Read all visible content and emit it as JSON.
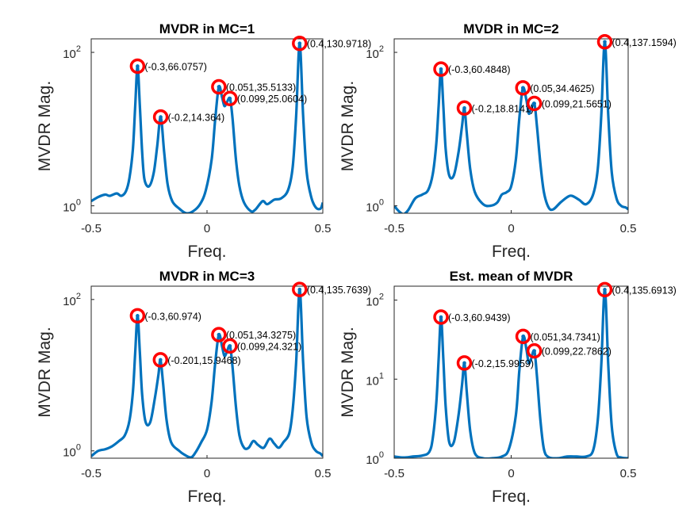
{
  "figure": {
    "background": "#ffffff"
  },
  "colors": {
    "curve": "#0072BD",
    "marker": "#FF0000"
  },
  "chart_data": [
    {
      "type": "line",
      "title": "MVDR in MC=1",
      "xlabel": "Freq.",
      "ylabel": "MVDR Mag.",
      "xlim": [
        -0.5,
        0.5
      ],
      "ylim": [
        0.8,
        150
      ],
      "yscale": "log",
      "xticks": [
        -0.5,
        0,
        0.5
      ],
      "xtick_labels": [
        "-0.5",
        "0",
        "0.5"
      ],
      "yticks": [
        1,
        100
      ],
      "ytick_labels": [
        [
          "10",
          "0"
        ],
        [
          "10",
          "2"
        ]
      ],
      "baseline": [
        [
          -0.5,
          1.15
        ],
        [
          -0.47,
          1.3
        ],
        [
          -0.44,
          1.4
        ],
        [
          -0.42,
          1.35
        ],
        [
          -0.39,
          1.45
        ],
        [
          -0.37,
          1.35
        ],
        [
          -0.35,
          1.55
        ],
        [
          -0.335,
          2.3
        ],
        [
          -0.32,
          5.5
        ],
        [
          -0.31,
          20
        ],
        [
          -0.3,
          66.0757
        ],
        [
          -0.29,
          20
        ],
        [
          -0.28,
          5
        ],
        [
          -0.27,
          2.2
        ],
        [
          -0.25,
          1.8
        ],
        [
          -0.23,
          2.7
        ],
        [
          -0.215,
          6
        ],
        [
          -0.2,
          14.364
        ],
        [
          -0.185,
          5
        ],
        [
          -0.17,
          1.9
        ],
        [
          -0.15,
          1.15
        ],
        [
          -0.12,
          0.92
        ],
        [
          -0.09,
          0.8
        ],
        [
          -0.06,
          0.85
        ],
        [
          -0.03,
          1.05
        ],
        [
          -0.005,
          1.6
        ],
        [
          0.02,
          4
        ],
        [
          0.035,
          13
        ],
        [
          0.051,
          35.5133
        ],
        [
          0.065,
          26
        ],
        [
          0.075,
          20
        ],
        [
          0.085,
          22
        ],
        [
          0.099,
          25.0604
        ],
        [
          0.11,
          14
        ],
        [
          0.125,
          4
        ],
        [
          0.14,
          1.8
        ],
        [
          0.16,
          1.1
        ],
        [
          0.19,
          0.85
        ],
        [
          0.21,
          0.9
        ],
        [
          0.24,
          1.15
        ],
        [
          0.26,
          1.05
        ],
        [
          0.29,
          1.2
        ],
        [
          0.32,
          1.25
        ],
        [
          0.35,
          1.6
        ],
        [
          0.37,
          3.2
        ],
        [
          0.385,
          15
        ],
        [
          0.4,
          130.9718
        ],
        [
          0.415,
          15
        ],
        [
          0.43,
          2.8
        ],
        [
          0.45,
          1.3
        ],
        [
          0.47,
          0.95
        ],
        [
          0.49,
          0.92
        ],
        [
          0.5,
          1.1
        ]
      ],
      "peaks": [
        {
          "x": -0.3,
          "y": 66.0757,
          "label": "(-0.3,66.0757)"
        },
        {
          "x": -0.2,
          "y": 14.364,
          "label": "(-0.2,14.364)"
        },
        {
          "x": 0.051,
          "y": 35.5133,
          "label": "(0.051,35.5133)"
        },
        {
          "x": 0.099,
          "y": 25.0604,
          "label": "(0.099,25.0604)"
        },
        {
          "x": 0.4,
          "y": 130.9718,
          "label": "(0.4,130.9718)"
        }
      ]
    },
    {
      "type": "line",
      "title": "MVDR in MC=2",
      "xlabel": "Freq.",
      "ylabel": "MVDR Mag.",
      "xlim": [
        -0.5,
        0.5
      ],
      "ylim": [
        0.8,
        150
      ],
      "yscale": "log",
      "xticks": [
        -0.5,
        0,
        0.5
      ],
      "xtick_labels": [
        "-0.5",
        "0",
        "0.5"
      ],
      "yticks": [
        1,
        100
      ],
      "ytick_labels": [
        [
          "10",
          "0"
        ],
        [
          "10",
          "2"
        ]
      ],
      "baseline": [
        [
          -0.5,
          1.0
        ],
        [
          -0.48,
          0.85
        ],
        [
          -0.46,
          0.78
        ],
        [
          -0.44,
          0.88
        ],
        [
          -0.41,
          1.25
        ],
        [
          -0.38,
          1.4
        ],
        [
          -0.355,
          1.6
        ],
        [
          -0.335,
          2.6
        ],
        [
          -0.32,
          6.5
        ],
        [
          -0.31,
          20
        ],
        [
          -0.3,
          60.4848
        ],
        [
          -0.29,
          20
        ],
        [
          -0.28,
          5.5
        ],
        [
          -0.265,
          2.5
        ],
        [
          -0.245,
          2.5
        ],
        [
          -0.225,
          5
        ],
        [
          -0.21,
          11
        ],
        [
          -0.2,
          18.8141
        ],
        [
          -0.19,
          9
        ],
        [
          -0.175,
          3
        ],
        [
          -0.155,
          1.5
        ],
        [
          -0.12,
          1.05
        ],
        [
          -0.09,
          1.0
        ],
        [
          -0.06,
          1.1
        ],
        [
          -0.04,
          1.4
        ],
        [
          -0.02,
          1.5
        ],
        [
          0.0,
          1.8
        ],
        [
          0.02,
          4
        ],
        [
          0.035,
          14
        ],
        [
          0.05,
          34.4625
        ],
        [
          0.065,
          24
        ],
        [
          0.075,
          16
        ],
        [
          0.085,
          18
        ],
        [
          0.099,
          21.5651
        ],
        [
          0.11,
          11
        ],
        [
          0.125,
          3.5
        ],
        [
          0.14,
          1.5
        ],
        [
          0.16,
          0.95
        ],
        [
          0.18,
          0.9
        ],
        [
          0.21,
          1.1
        ],
        [
          0.24,
          1.3
        ],
        [
          0.26,
          1.35
        ],
        [
          0.29,
          1.2
        ],
        [
          0.32,
          1.05
        ],
        [
          0.35,
          1.4
        ],
        [
          0.37,
          3
        ],
        [
          0.385,
          15
        ],
        [
          0.4,
          137.1594
        ],
        [
          0.415,
          15
        ],
        [
          0.43,
          2.7
        ],
        [
          0.45,
          1.25
        ],
        [
          0.47,
          1.0
        ],
        [
          0.49,
          0.95
        ],
        [
          0.5,
          0.9
        ]
      ],
      "peaks": [
        {
          "x": -0.3,
          "y": 60.4848,
          "label": "(-0.3,60.4848)"
        },
        {
          "x": -0.2,
          "y": 18.8141,
          "label": "(-0.2,18.8141)"
        },
        {
          "x": 0.05,
          "y": 34.4625,
          "label": "(0.05,34.4625)"
        },
        {
          "x": 0.099,
          "y": 21.5651,
          "label": "(0.099,21.5651)"
        },
        {
          "x": 0.4,
          "y": 137.1594,
          "label": "(0.4,137.1594)"
        }
      ]
    },
    {
      "type": "line",
      "title": "MVDR in MC=3",
      "xlabel": "Freq.",
      "ylabel": "MVDR Mag.",
      "xlim": [
        -0.5,
        0.5
      ],
      "ylim": [
        0.8,
        150
      ],
      "yscale": "log",
      "xticks": [
        -0.5,
        0,
        0.5
      ],
      "xtick_labels": [
        "-0.5",
        "0",
        "0.5"
      ],
      "yticks": [
        1,
        100
      ],
      "ytick_labels": [
        [
          "10",
          "0"
        ],
        [
          "10",
          "2"
        ]
      ],
      "baseline": [
        [
          -0.5,
          0.85
        ],
        [
          -0.47,
          1.0
        ],
        [
          -0.44,
          1.05
        ],
        [
          -0.41,
          1.15
        ],
        [
          -0.38,
          1.35
        ],
        [
          -0.355,
          1.6
        ],
        [
          -0.335,
          2.5
        ],
        [
          -0.32,
          6
        ],
        [
          -0.31,
          20
        ],
        [
          -0.3,
          60.974
        ],
        [
          -0.29,
          20
        ],
        [
          -0.28,
          5.5
        ],
        [
          -0.265,
          2.4
        ],
        [
          -0.245,
          2.4
        ],
        [
          -0.225,
          5
        ],
        [
          -0.21,
          10
        ],
        [
          -0.201,
          15.9468
        ],
        [
          -0.19,
          8
        ],
        [
          -0.175,
          2.6
        ],
        [
          -0.155,
          1.3
        ],
        [
          -0.12,
          1.0
        ],
        [
          -0.1,
          0.9
        ],
        [
          -0.07,
          0.82
        ],
        [
          -0.05,
          0.95
        ],
        [
          -0.025,
          1.3
        ],
        [
          0.0,
          1.9
        ],
        [
          0.02,
          4.5
        ],
        [
          0.035,
          14
        ],
        [
          0.051,
          34.3275
        ],
        [
          0.065,
          24
        ],
        [
          0.075,
          18
        ],
        [
          0.085,
          20
        ],
        [
          0.099,
          24.321
        ],
        [
          0.11,
          13
        ],
        [
          0.125,
          3.8
        ],
        [
          0.14,
          1.6
        ],
        [
          0.16,
          1.1
        ],
        [
          0.18,
          1.1
        ],
        [
          0.2,
          1.35
        ],
        [
          0.22,
          1.2
        ],
        [
          0.245,
          1.1
        ],
        [
          0.27,
          1.45
        ],
        [
          0.29,
          1.25
        ],
        [
          0.31,
          1.1
        ],
        [
          0.33,
          1.3
        ],
        [
          0.355,
          1.7
        ],
        [
          0.37,
          3.5
        ],
        [
          0.385,
          15
        ],
        [
          0.4,
          135.7639
        ],
        [
          0.415,
          15
        ],
        [
          0.43,
          2.8
        ],
        [
          0.45,
          1.3
        ],
        [
          0.47,
          1.0
        ],
        [
          0.49,
          0.92
        ],
        [
          0.5,
          0.85
        ]
      ],
      "peaks": [
        {
          "x": -0.3,
          "y": 60.974,
          "label": "(-0.3,60.974)"
        },
        {
          "x": -0.201,
          "y": 15.9468,
          "label": "(-0.201,15.9468)"
        },
        {
          "x": 0.051,
          "y": 34.3275,
          "label": "(0.051,34.3275)"
        },
        {
          "x": 0.099,
          "y": 24.321,
          "label": "(0.099,24.321)"
        },
        {
          "x": 0.4,
          "y": 135.7639,
          "label": "(0.4,135.7639)"
        }
      ]
    },
    {
      "type": "line",
      "title": "Est. mean of MVDR",
      "xlabel": "Freq.",
      "ylabel": "MVDR Mag.",
      "xlim": [
        -0.5,
        0.5
      ],
      "ylim": [
        1,
        150
      ],
      "yscale": "log",
      "xticks": [
        -0.5,
        0,
        0.5
      ],
      "xtick_labels": [
        "-0.5",
        "0",
        "0.5"
      ],
      "yticks": [
        1,
        10,
        100
      ],
      "ytick_labels": [
        [
          "10",
          "0"
        ],
        [
          "10",
          "1"
        ],
        [
          "10",
          "2"
        ]
      ],
      "baseline": [
        [
          -0.5,
          1.05
        ],
        [
          -0.46,
          1.02
        ],
        [
          -0.42,
          1.05
        ],
        [
          -0.38,
          1.08
        ],
        [
          -0.35,
          1.2
        ],
        [
          -0.335,
          1.8
        ],
        [
          -0.32,
          5
        ],
        [
          -0.31,
          18
        ],
        [
          -0.3,
          60.9439
        ],
        [
          -0.29,
          18
        ],
        [
          -0.28,
          4.5
        ],
        [
          -0.265,
          1.6
        ],
        [
          -0.245,
          1.6
        ],
        [
          -0.225,
          3.5
        ],
        [
          -0.21,
          8.5
        ],
        [
          -0.2,
          15.9959
        ],
        [
          -0.19,
          7
        ],
        [
          -0.175,
          2.2
        ],
        [
          -0.155,
          1.15
        ],
        [
          -0.12,
          1.0
        ],
        [
          -0.08,
          1.0
        ],
        [
          -0.04,
          1.05
        ],
        [
          -0.01,
          1.3
        ],
        [
          0.02,
          3.5
        ],
        [
          0.035,
          13
        ],
        [
          0.051,
          34.7341
        ],
        [
          0.065,
          24
        ],
        [
          0.075,
          16
        ],
        [
          0.085,
          18
        ],
        [
          0.099,
          22.7862
        ],
        [
          0.11,
          11
        ],
        [
          0.125,
          3
        ],
        [
          0.14,
          1.3
        ],
        [
          0.16,
          1.03
        ],
        [
          0.2,
          1.0
        ],
        [
          0.24,
          1.05
        ],
        [
          0.28,
          1.05
        ],
        [
          0.32,
          1.05
        ],
        [
          0.35,
          1.25
        ],
        [
          0.37,
          3
        ],
        [
          0.385,
          15
        ],
        [
          0.4,
          135.6913
        ],
        [
          0.415,
          15
        ],
        [
          0.43,
          2.5
        ],
        [
          0.45,
          1.15
        ],
        [
          0.47,
          1.02
        ],
        [
          0.5,
          1.0
        ]
      ],
      "peaks": [
        {
          "x": -0.3,
          "y": 60.9439,
          "label": "(-0.3,60.9439)"
        },
        {
          "x": -0.2,
          "y": 15.9959,
          "label": "(-0.2,15.9959)"
        },
        {
          "x": 0.051,
          "y": 34.7341,
          "label": "(0.051,34.7341)"
        },
        {
          "x": 0.099,
          "y": 22.7862,
          "label": "(0.099,22.7862)"
        },
        {
          "x": 0.4,
          "y": 135.6913,
          "label": "(0.4,135.6913)"
        }
      ]
    }
  ]
}
